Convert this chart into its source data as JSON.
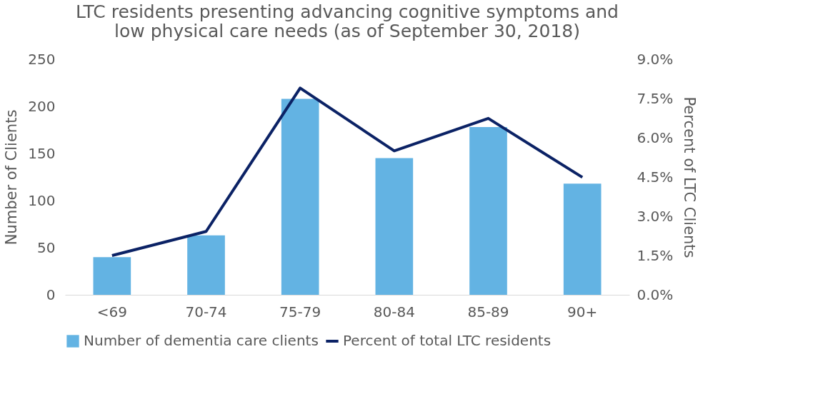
{
  "chart_data": {
    "type": "bar",
    "title": "LTC residents presenting advancing cognitive symptoms and low physical care needs (as of September 30, 2018)",
    "categories": [
      "<69",
      "70-74",
      "75-79",
      "80-84",
      "85-89",
      "90+"
    ],
    "series": [
      {
        "name": "Number of dementia care clients",
        "color": "#63b3e3",
        "values": [
          40,
          63,
          208,
          145,
          178,
          118
        ]
      },
      {
        "name": "Percent of total LTC residents",
        "type": "line",
        "axis": "y2",
        "color": "#0b2265",
        "values": [
          1.5,
          2.42,
          7.9,
          5.5,
          6.74,
          4.49
        ]
      }
    ],
    "ylabel": "Number of Clients",
    "y2label": "Percent of LTC Clients",
    "ylim": [
      0,
      250
    ],
    "yticks": [
      0,
      50,
      100,
      150,
      200,
      250
    ],
    "y2lim": [
      0,
      9
    ],
    "y2ticks": [
      {
        "value": 0,
        "label": "0.0%"
      },
      {
        "value": 1.5,
        "label": "1.5%"
      },
      {
        "value": 3,
        "label": "3.0%"
      },
      {
        "value": 4.5,
        "label": "4.5%"
      },
      {
        "value": 6,
        "label": "6.0%"
      },
      {
        "value": 7.5,
        "label": "7.5%"
      },
      {
        "value": 9,
        "label": "9.0%"
      }
    ],
    "grid": false,
    "legend": "bottom",
    "marker": "none",
    "line_style": "solid"
  }
}
